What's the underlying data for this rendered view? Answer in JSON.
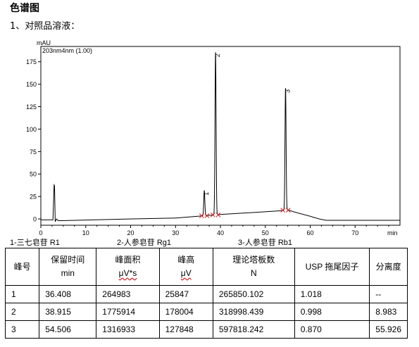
{
  "header": {
    "title": "色谱图",
    "subtitle": "1、对照品溶液："
  },
  "chart_data": {
    "type": "line",
    "ylabel": "mAU",
    "xlabel": "min",
    "trace_label": "203nm4nm (1.00)",
    "xlim": [
      0,
      80
    ],
    "ylim": [
      -7,
      192
    ],
    "x_ticks": [
      0,
      10,
      20,
      30,
      40,
      50,
      60,
      70
    ],
    "y_ticks": [
      0,
      25,
      50,
      75,
      100,
      125,
      150,
      175
    ],
    "baseline": {
      "x": [
        0,
        2.7,
        2.95,
        3.05,
        3.2,
        3.5,
        3.9,
        20,
        30,
        35,
        40,
        45,
        50,
        53,
        55,
        57,
        60,
        62,
        63.5,
        67,
        80
      ],
      "y": [
        -1,
        -1,
        38,
        37,
        -3,
        0,
        -2,
        0,
        1,
        3,
        5,
        6.5,
        8,
        9,
        10,
        7,
        3,
        0,
        -1.5,
        -1.5,
        -1.5
      ]
    },
    "peaks": [
      {
        "label": "1",
        "retention_time": 36.408,
        "height": 28
      },
      {
        "label": "2",
        "retention_time": 38.915,
        "height": 181
      },
      {
        "label": "3",
        "retention_time": 54.506,
        "height": 136
      }
    ]
  },
  "legend": {
    "items": [
      "1-三七皂苷 R1",
      "2-人参皂苷 Rg1",
      "3-人参皂苷 Rb1"
    ]
  },
  "table": {
    "headers": [
      {
        "line1": "峰号",
        "line2": ""
      },
      {
        "line1": "保留时间",
        "line2": "min"
      },
      {
        "line1": "峰面积",
        "line2": "μV*s"
      },
      {
        "line1": "峰高",
        "line2": "μV"
      },
      {
        "line1": "理论塔板数",
        "line2": "N"
      },
      {
        "line1": "USP 拖尾因子",
        "line2": ""
      },
      {
        "line1": "分离度",
        "line2": ""
      }
    ],
    "rows": [
      [
        "1",
        "36.408",
        "264983",
        "25847",
        "265850.102",
        "1.018",
        "--"
      ],
      [
        "2",
        "38.915",
        "1775914",
        "178004",
        "318998.439",
        "0.998",
        "8.983"
      ],
      [
        "3",
        "54.506",
        "1316933",
        "127848",
        "597818.242",
        "0.870",
        "55.926"
      ]
    ]
  }
}
